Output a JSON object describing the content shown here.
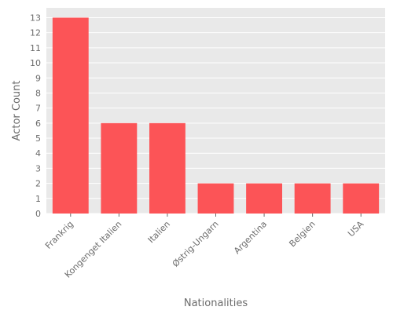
{
  "chart_data": {
    "type": "bar",
    "title": "",
    "xlabel": "Nationalities",
    "ylabel": "Actor Count",
    "categories": [
      "Frankrig",
      "Kongenget Italien",
      "Italien",
      "Østrig-Ungarn",
      "Argentina",
      "Belgien",
      "USA"
    ],
    "values": [
      13,
      6,
      6,
      2,
      2,
      2,
      2
    ],
    "ylim": [
      0,
      13.65
    ],
    "yticks": [
      0,
      1,
      2,
      3,
      4,
      5,
      6,
      7,
      8,
      9,
      10,
      11,
      12,
      13
    ],
    "grid": true,
    "legend": "none",
    "colors": {
      "bar": "#fc5457",
      "plot_background": "#e9e9e9",
      "grid": "#ffffff",
      "text": "#6b6b6b"
    }
  }
}
